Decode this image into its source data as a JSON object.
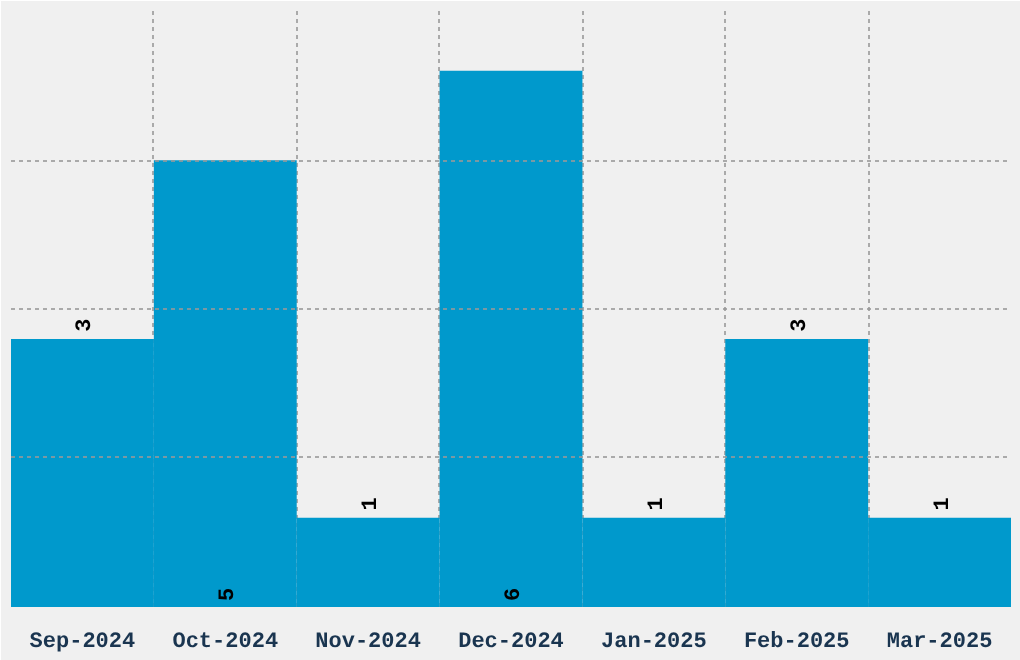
{
  "chart_data": {
    "type": "bar",
    "categories": [
      "Sep-2024",
      "Oct-2024",
      "Nov-2024",
      "Dec-2024",
      "Jan-2025",
      "Feb-2025",
      "Mar-2025"
    ],
    "values": [
      3,
      5,
      1,
      6,
      1,
      3,
      1
    ],
    "color": "#0099cc",
    "data_labels": true,
    "ylim": [
      0,
      6.67
    ],
    "yticks": [
      {
        "value": 0,
        "label": null
      },
      {
        "value": 1.67,
        "label": null
      },
      {
        "value": 3.33,
        "label": null
      },
      {
        "value": 5,
        "label": null
      },
      {
        "value": 6.67,
        "label": null
      }
    ],
    "grid": true,
    "tick_labels": "x"
  }
}
